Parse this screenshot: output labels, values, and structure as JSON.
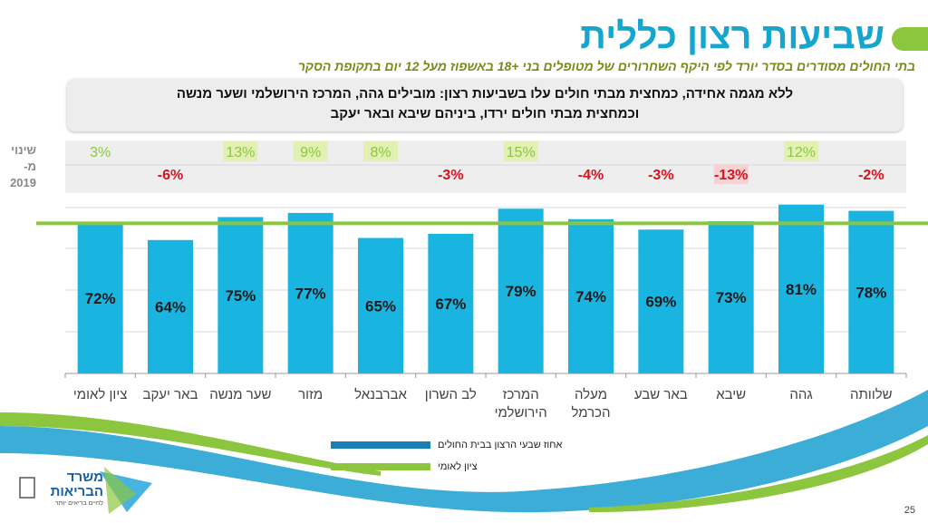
{
  "slide": {
    "title": "שביעות רצון כללית",
    "subtitle": "בתי החולים מסודרים בסדר יורד לפי היקף השחרורים של מטופלים בני +18 באשפוז מעל 12 יום בתקופת הסקר",
    "callout_line1": "ללא מגמה אחידה, כמחצית מבתי חולים עלו בשביעות רצון: מובילים גהה, המרכז הירושלמי ושער מנשה",
    "callout_line2": "וכמחצית מבתי חולים ירדו, ביניהם שיבא ובאר יעקב",
    "change_label_line1": "שינוי",
    "change_label_line2": "מ- 2019",
    "page_number": "25",
    "logo_text_1": "משרד",
    "logo_text_2": "הבריאות",
    "logo_tagline": "לחיים בריאים יותר"
  },
  "chart_data": {
    "type": "bar",
    "direction": "rtl",
    "categories": [
      "שלוותה",
      "גהה",
      "שיבא",
      "באר שבע",
      "מעלה הכרמל",
      "המרכז הירושלמי",
      "לב השרון",
      "אברבנאל",
      "מזור",
      "שער מנשה",
      "באר יעקב",
      "ציון לאומי"
    ],
    "category_lines": [
      [
        "שלוותה"
      ],
      [
        "גהה"
      ],
      [
        "שיבא"
      ],
      [
        "באר שבע"
      ],
      [
        "מעלה",
        "הכרמל"
      ],
      [
        "המרכז",
        "הירושלמי"
      ],
      [
        "לב השרון"
      ],
      [
        "אברבנאל"
      ],
      [
        "מזור"
      ],
      [
        "שער מנשה"
      ],
      [
        "באר יעקב"
      ],
      [
        "ציון לאומי"
      ]
    ],
    "values": [
      78,
      81,
      73,
      69,
      74,
      79,
      67,
      65,
      77,
      75,
      64,
      72
    ],
    "value_labels": [
      "78%",
      "81%",
      "73%",
      "69%",
      "74%",
      "79%",
      "67%",
      "65%",
      "77%",
      "75%",
      "64%",
      "72%"
    ],
    "change_from_2019": [
      "-2%",
      "12%",
      "-13%",
      "-3%",
      "-4%",
      "15%",
      "-3%",
      "8%",
      "9%",
      "13%",
      "-6%",
      "3%"
    ],
    "change_highlighted": [
      false,
      true,
      true,
      false,
      false,
      true,
      false,
      true,
      true,
      true,
      false,
      false
    ],
    "reference_line": {
      "name": "ציון לאומי",
      "value": 72
    },
    "series_name": "אחוז שבעי הרצון בבית החולים",
    "ylim": [
      0,
      100
    ],
    "grid": true,
    "legend": "bottom-center",
    "colors": {
      "bar": "#1ab4e0",
      "reference": "#8cc63f",
      "positive": "#8cc63f",
      "positive_bg": "#e3f0b4",
      "negative": "#d9121f",
      "negative_bg": "#f8d2d2",
      "band": "#eeeeee"
    }
  }
}
